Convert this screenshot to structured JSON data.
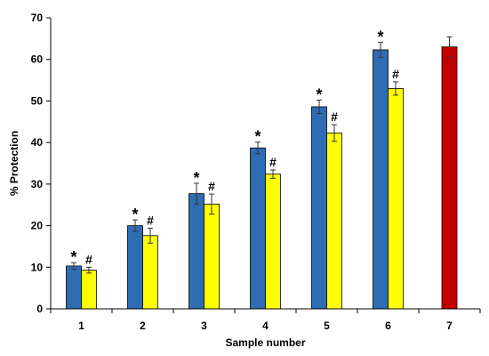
{
  "chart_data": {
    "type": "bar",
    "title": "",
    "xlabel": "Sample number",
    "ylabel": "% Protection",
    "ylim": [
      0,
      70
    ],
    "yticks": [
      0,
      10,
      20,
      30,
      40,
      50,
      60,
      70
    ],
    "categories": [
      "1",
      "2",
      "3",
      "4",
      "5",
      "6",
      "7"
    ],
    "grid": false,
    "legend": "none",
    "series": [
      {
        "color": "#2e6db4",
        "values": [
          10.3,
          20.0,
          27.7,
          38.7,
          48.6,
          62.3,
          null
        ],
        "errors": [
          0.8,
          1.4,
          2.5,
          1.4,
          1.6,
          1.8,
          null
        ],
        "annotation": "*"
      },
      {
        "color": "#ffff00",
        "values": [
          9.3,
          17.6,
          25.2,
          32.4,
          42.3,
          53.0,
          null
        ],
        "errors": [
          0.7,
          1.8,
          2.4,
          1.0,
          2.0,
          1.6,
          null
        ],
        "annotation": "#"
      },
      {
        "color": "#c00000",
        "values": [
          null,
          null,
          null,
          null,
          null,
          null,
          63.0
        ],
        "errors": [
          null,
          null,
          null,
          null,
          null,
          null,
          2.4
        ],
        "annotation": ""
      }
    ]
  }
}
